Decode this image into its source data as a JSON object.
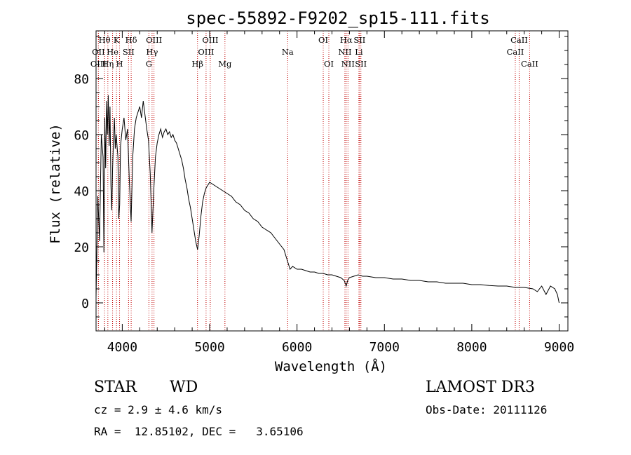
{
  "chart_data": {
    "type": "line",
    "title": "spec-55892-F9202_sp15-111.fits",
    "xlabel": "Wavelength (Å)",
    "ylabel": "Flux (relative)",
    "xlim": [
      3700,
      9100
    ],
    "ylim": [
      -10,
      97
    ],
    "xticks": [
      4000,
      5000,
      6000,
      7000,
      8000,
      9000
    ],
    "yticks": [
      0,
      20,
      40,
      60,
      80
    ],
    "x_minor_step": 200,
    "y_minor_step": 5,
    "grid": false,
    "line_color": "#000000",
    "marker_color": "#c00000",
    "series": [
      {
        "name": "flux",
        "points": [
          [
            3700,
            2
          ],
          [
            3720,
            38
          ],
          [
            3740,
            22
          ],
          [
            3760,
            60
          ],
          [
            3780,
            52
          ],
          [
            3790,
            18
          ],
          [
            3800,
            66
          ],
          [
            3810,
            48
          ],
          [
            3820,
            72
          ],
          [
            3830,
            60
          ],
          [
            3840,
            74
          ],
          [
            3850,
            56
          ],
          [
            3860,
            70
          ],
          [
            3870,
            42
          ],
          [
            3880,
            33
          ],
          [
            3889,
            48
          ],
          [
            3900,
            58
          ],
          [
            3910,
            66
          ],
          [
            3920,
            55
          ],
          [
            3930,
            60
          ],
          [
            3950,
            52
          ],
          [
            3960,
            30
          ],
          [
            3970,
            35
          ],
          [
            3980,
            56
          ],
          [
            4000,
            62
          ],
          [
            4020,
            66
          ],
          [
            4040,
            58
          ],
          [
            4060,
            62
          ],
          [
            4080,
            44
          ],
          [
            4101,
            29
          ],
          [
            4120,
            52
          ],
          [
            4140,
            62
          ],
          [
            4160,
            66
          ],
          [
            4180,
            68
          ],
          [
            4200,
            70
          ],
          [
            4220,
            66
          ],
          [
            4240,
            72
          ],
          [
            4260,
            67
          ],
          [
            4280,
            62
          ],
          [
            4300,
            58
          ],
          [
            4320,
            46
          ],
          [
            4340,
            25
          ],
          [
            4360,
            40
          ],
          [
            4380,
            52
          ],
          [
            4400,
            57
          ],
          [
            4420,
            60
          ],
          [
            4440,
            62
          ],
          [
            4460,
            59
          ],
          [
            4480,
            61
          ],
          [
            4500,
            62
          ],
          [
            4520,
            60
          ],
          [
            4540,
            61
          ],
          [
            4560,
            59
          ],
          [
            4580,
            60
          ],
          [
            4600,
            58
          ],
          [
            4620,
            57
          ],
          [
            4640,
            55
          ],
          [
            4660,
            53
          ],
          [
            4680,
            51
          ],
          [
            4700,
            48
          ],
          [
            4720,
            44
          ],
          [
            4740,
            41
          ],
          [
            4760,
            37
          ],
          [
            4780,
            34
          ],
          [
            4800,
            30
          ],
          [
            4820,
            26
          ],
          [
            4840,
            22
          ],
          [
            4862,
            19
          ],
          [
            4880,
            24
          ],
          [
            4900,
            31
          ],
          [
            4920,
            36
          ],
          [
            4940,
            39
          ],
          [
            4960,
            41
          ],
          [
            4980,
            42
          ],
          [
            5000,
            43
          ],
          [
            5050,
            42
          ],
          [
            5100,
            41
          ],
          [
            5150,
            40
          ],
          [
            5200,
            39
          ],
          [
            5250,
            38
          ],
          [
            5300,
            36
          ],
          [
            5350,
            35
          ],
          [
            5400,
            33
          ],
          [
            5450,
            32
          ],
          [
            5500,
            30
          ],
          [
            5550,
            29
          ],
          [
            5600,
            27
          ],
          [
            5650,
            26
          ],
          [
            5700,
            25
          ],
          [
            5750,
            23
          ],
          [
            5800,
            21
          ],
          [
            5850,
            19
          ],
          [
            5880,
            16
          ],
          [
            5900,
            14
          ],
          [
            5920,
            12
          ],
          [
            5950,
            13
          ],
          [
            6000,
            12
          ],
          [
            6050,
            12
          ],
          [
            6100,
            11.5
          ],
          [
            6150,
            11
          ],
          [
            6200,
            11
          ],
          [
            6250,
            10.5
          ],
          [
            6300,
            10.5
          ],
          [
            6350,
            10
          ],
          [
            6400,
            10
          ],
          [
            6450,
            9.5
          ],
          [
            6500,
            9
          ],
          [
            6540,
            8
          ],
          [
            6563,
            6
          ],
          [
            6580,
            8
          ],
          [
            6600,
            9
          ],
          [
            6650,
            9.5
          ],
          [
            6700,
            10
          ],
          [
            6750,
            9.5
          ],
          [
            6800,
            9.5
          ],
          [
            6900,
            9
          ],
          [
            7000,
            9
          ],
          [
            7100,
            8.5
          ],
          [
            7200,
            8.5
          ],
          [
            7300,
            8
          ],
          [
            7400,
            8
          ],
          [
            7500,
            7.5
          ],
          [
            7600,
            7.5
          ],
          [
            7700,
            7
          ],
          [
            7800,
            7
          ],
          [
            7900,
            7
          ],
          [
            8000,
            6.5
          ],
          [
            8100,
            6.5
          ],
          [
            8200,
            6.2
          ],
          [
            8300,
            6
          ],
          [
            8400,
            6
          ],
          [
            8500,
            5.5
          ],
          [
            8600,
            5.5
          ],
          [
            8700,
            5
          ],
          [
            8750,
            4
          ],
          [
            8800,
            6
          ],
          [
            8850,
            3
          ],
          [
            8900,
            6
          ],
          [
            8950,
            5
          ],
          [
            8980,
            3
          ],
          [
            9000,
            0
          ]
        ]
      }
    ],
    "lines": [
      {
        "label": "Hθ",
        "x": 3797,
        "row": 1
      },
      {
        "label": "OII",
        "x": 3727,
        "row": 2
      },
      {
        "label": "OIII",
        "x": 3727,
        "row": 3
      },
      {
        "label": "Hη",
        "x": 3835,
        "row": 3
      },
      {
        "label": "He",
        "x": 3889,
        "row": 2
      },
      {
        "label": "K",
        "x": 3934,
        "row": 1
      },
      {
        "label": "H",
        "x": 3969,
        "row": 3
      },
      {
        "label": "Hδ",
        "x": 4102,
        "row": 1
      },
      {
        "label": "SII",
        "x": 4072,
        "row": 2
      },
      {
        "label": "OIII",
        "x": 4363,
        "row": 1
      },
      {
        "label": "Hγ",
        "x": 4341,
        "row": 2
      },
      {
        "label": "G",
        "x": 4305,
        "row": 3
      },
      {
        "label": "Hβ",
        "x": 4861,
        "row": 3
      },
      {
        "label": "OIII",
        "x": 5007,
        "row": 1
      },
      {
        "label": "OIII",
        "x": 4959,
        "row": 2
      },
      {
        "label": "Mg",
        "x": 5175,
        "row": 3
      },
      {
        "label": "Na",
        "x": 5893,
        "row": 2
      },
      {
        "label": "OI",
        "x": 6300,
        "row": 1
      },
      {
        "label": "OI",
        "x": 6364,
        "row": 3
      },
      {
        "label": "Hα",
        "x": 6563,
        "row": 1
      },
      {
        "label": "NII",
        "x": 6548,
        "row": 2
      },
      {
        "label": "NII",
        "x": 6583,
        "row": 3
      },
      {
        "label": "SII",
        "x": 6716,
        "row": 1
      },
      {
        "label": "Li",
        "x": 6708,
        "row": 2
      },
      {
        "label": "SII",
        "x": 6731,
        "row": 3
      },
      {
        "label": "CaII",
        "x": 8542,
        "row": 1
      },
      {
        "label": "CaII",
        "x": 8498,
        "row": 2
      },
      {
        "label": "CaII",
        "x": 8662,
        "row": 3
      }
    ]
  },
  "info": {
    "class_label": "STAR",
    "subclass": "WD",
    "survey": "LAMOST DR3",
    "redshift": "cz = 2.9 ± 4.6 km/s",
    "obs_date": "Obs-Date: 20111126",
    "coords": "RA =  12.85102, DEC =   3.65106"
  }
}
